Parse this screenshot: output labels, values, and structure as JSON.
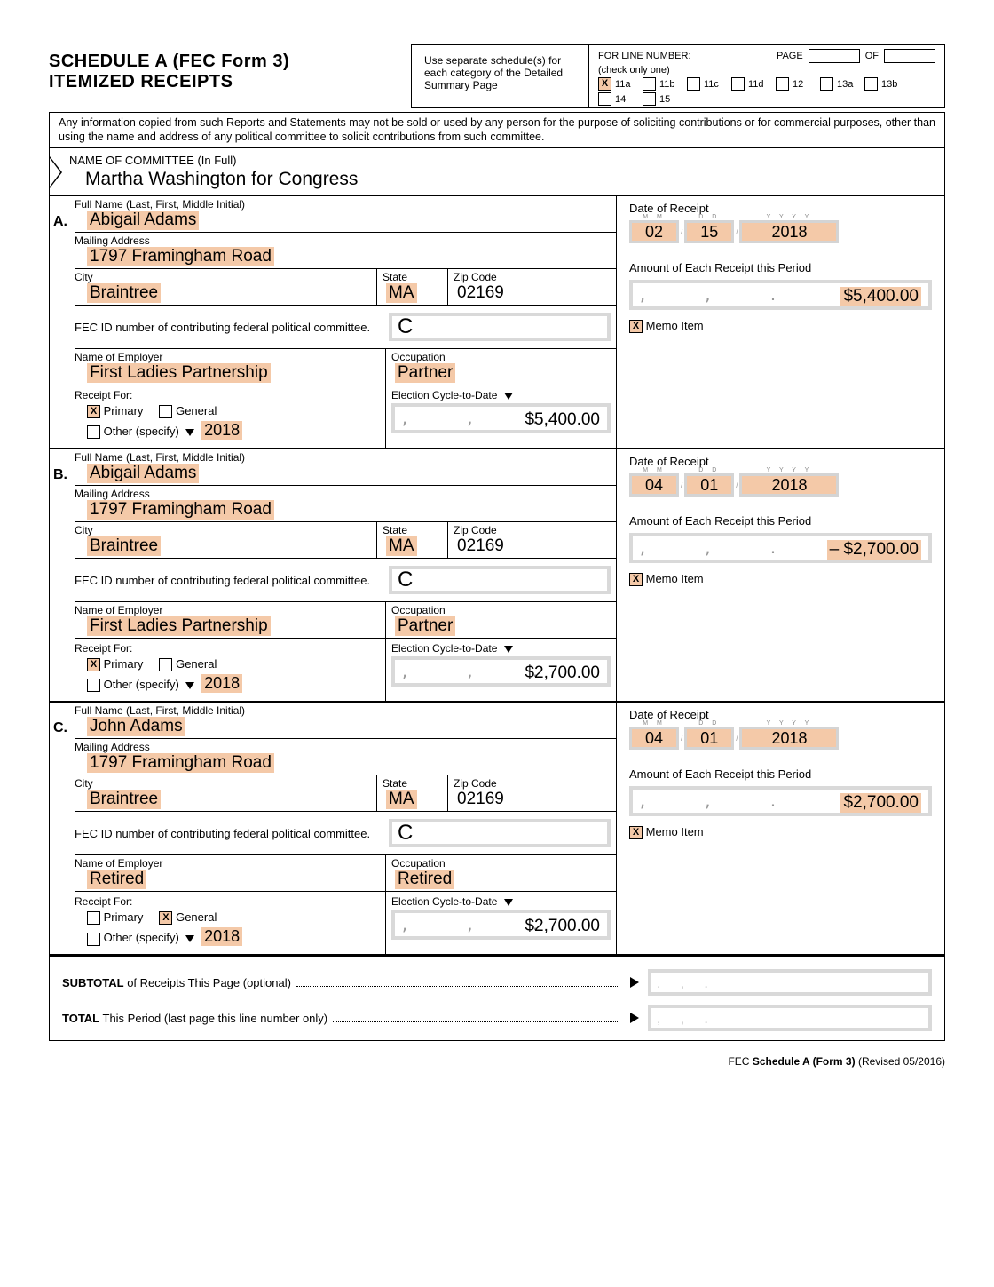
{
  "title1": "SCHEDULE A  (FEC Form 3)",
  "title2": "ITEMIZED RECEIPTS",
  "header_note": "Use separate schedule(s) for each category of the Detailed Summary Page",
  "for_line": "FOR LINE NUMBER:",
  "page": "PAGE",
  "of": "OF",
  "check_one": "(check only one)",
  "line_opts": [
    {
      "lbl": "11a",
      "x": true
    },
    {
      "lbl": "11b",
      "x": false
    },
    {
      "lbl": "11c",
      "x": false
    },
    {
      "lbl": "11d",
      "x": false
    },
    {
      "lbl": "12",
      "x": false
    },
    {
      "lbl": "13a",
      "x": false
    },
    {
      "lbl": "13b",
      "x": false
    },
    {
      "lbl": "14",
      "x": false
    },
    {
      "lbl": "15",
      "x": false
    }
  ],
  "disclaimer": "Any information copied from such Reports and Statements may not be sold or used by any person for the purpose of soliciting contributions or for commercial purposes, other than using the name and address of any political committee to solicit contributions from such committee.",
  "committee_label": "NAME OF COMMITTEE (In Full)",
  "committee_name": "Martha Washington for Congress",
  "labels": {
    "full_name": "Full Name (Last, First, Middle Initial)",
    "mailing": "Mailing Address",
    "city": "City",
    "state": "State",
    "zip": "Zip Code",
    "fec_id": "FEC ID number of contributing federal political committee.",
    "employer": "Name of Employer",
    "occupation": "Occupation",
    "receipt_for": "Receipt For:",
    "primary": "Primary",
    "general": "General",
    "other": "Other (specify)",
    "ec2d": "Election Cycle-to-Date",
    "dor": "Date of Receipt",
    "amt": "Amount of Each Receipt this Period",
    "memo": "Memo Item",
    "c": "C"
  },
  "entries": [
    {
      "letter": "A.",
      "name": "Abigail Adams",
      "addr": "1797 Framingham Road",
      "city": "Braintree",
      "state": "MA",
      "zip": "02169",
      "employer": "First Ladies Partnership",
      "occupation": "Partner",
      "primary": true,
      "general": false,
      "year": "2018",
      "cycle": "$5,400.00",
      "mm": "02",
      "dd": "15",
      "yy": "2018",
      "amount": "$5,400.00",
      "memo": true
    },
    {
      "letter": "B.",
      "name": "Abigail Adams",
      "addr": "1797 Framingham Road",
      "city": "Braintree",
      "state": "MA",
      "zip": "02169",
      "employer": "First Ladies Partnership",
      "occupation": "Partner",
      "primary": true,
      "general": false,
      "year": "2018",
      "cycle": "$2,700.00",
      "mm": "04",
      "dd": "01",
      "yy": "2018",
      "amount": "– $2,700.00",
      "memo": true
    },
    {
      "letter": "C.",
      "name": "John Adams",
      "addr": "1797 Framingham Road",
      "city": "Braintree",
      "state": "MA",
      "zip": "02169",
      "employer": "Retired",
      "occupation": "Retired",
      "primary": false,
      "general": true,
      "year": "2018",
      "cycle": "$2,700.00",
      "mm": "04",
      "dd": "01",
      "yy": "2018",
      "amount": "$2,700.00",
      "memo": true
    }
  ],
  "subtotal": "SUBTOTAL of Receipts This Page (optional)",
  "total": "TOTAL This Period (last page this line number only)",
  "footer1": "FEC ",
  "footer2": "Schedule A (Form 3)",
  "footer3": " (Revised 05/2016)"
}
